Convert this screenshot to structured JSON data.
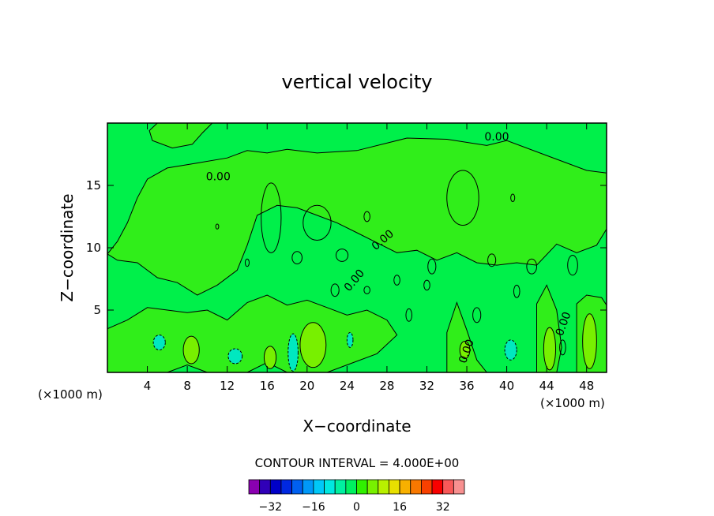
{
  "chart_data": {
    "type": "heatmap",
    "title": "vertical velocity",
    "xlabel": "X−coordinate",
    "ylabel": "Z−coordinate",
    "x_unit": "(×1000 m)",
    "xlim": [
      0,
      50
    ],
    "ylim": [
      0,
      20
    ],
    "xticks": [
      4,
      8,
      12,
      16,
      20,
      24,
      28,
      32,
      36,
      40,
      44,
      48
    ],
    "yticks": [
      5,
      10,
      15
    ],
    "contour_interval_text": "CONTOUR INTERVAL = 4.000E+00",
    "contour_interval": 4,
    "contour_labels": [
      "0.00",
      "0.00",
      "0.00",
      "0.00",
      "0.00",
      "0.00"
    ],
    "colorbar": {
      "ticks": [
        "−32",
        "−16",
        "0",
        "16",
        "32"
      ],
      "levels": [
        -36,
        -32,
        -28,
        -24,
        -20,
        -16,
        -12,
        -8,
        -4,
        0,
        4,
        8,
        12,
        16,
        20,
        24,
        28,
        32,
        36
      ],
      "colors": [
        "#8a00b0",
        "#3000b8",
        "#0000c8",
        "#0028e0",
        "#0060f0",
        "#0098f8",
        "#00c8f8",
        "#00e8e0",
        "#00f0a0",
        "#00f060",
        "#30f000",
        "#78f000",
        "#b8f000",
        "#e8e000",
        "#f8b000",
        "#f87800",
        "#f84000",
        "#f80000",
        "#f85858",
        "#f89090"
      ]
    },
    "background_colors": {
      "near_zero_negative": "#00f04a",
      "near_zero_positive": "#30ee1a"
    }
  }
}
